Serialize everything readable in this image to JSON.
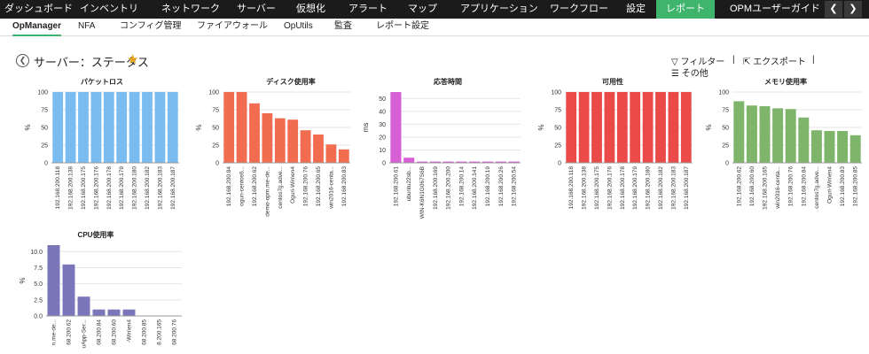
{
  "topnav": {
    "items": [
      "ダッシュボード",
      "インベントリ",
      "ネットワーク",
      "サーバー",
      "仮想化",
      "アラート",
      "マップ",
      "アプリケーション",
      "ワークフロー",
      "設定",
      "レポート",
      "OPMユーザーガイド"
    ],
    "active_index": 10,
    "accent_color": "#3fb46d"
  },
  "subnav": {
    "items": [
      "OpManager",
      "NFA",
      "コンフィグ管理",
      "ファイアウォール",
      "OpUtils",
      "監査",
      "レポート設定"
    ],
    "active_index": 0
  },
  "page": {
    "title": "サーバー：ステータス",
    "favorite_icon": "star-icon",
    "filter_label": "フィルター",
    "export_label": "エクスポート",
    "more_label": "その他"
  },
  "chart_data": [
    {
      "id": "packetloss",
      "type": "bar",
      "title": "パケットロス",
      "ylabel": "%",
      "ylim": [
        0,
        100
      ],
      "yticks": [
        0,
        25,
        50,
        75,
        100
      ],
      "color": "#7bbcf0",
      "categories": [
        "192.168.200.118",
        "192.168.200.138",
        "192.168.200.175",
        "192.168.200.176",
        "192.168.200.178",
        "192.168.200.179",
        "192.168.200.180",
        "192.168.200.182",
        "192.168.200.183",
        "192.168.200.187"
      ],
      "values": [
        100,
        100,
        100,
        100,
        100,
        100,
        100,
        100,
        100,
        100
      ]
    },
    {
      "id": "disk",
      "type": "bar",
      "title": "ディスク使用率",
      "ylabel": "%",
      "ylim": [
        0,
        100
      ],
      "yticks": [
        0,
        25,
        50,
        75,
        100
      ],
      "color": "#f26d4f",
      "categories": [
        "192.168.200.84",
        "ogun-centos6...",
        "192.168.200.62",
        "demo-opm.me-de...",
        "centos7g.adve...",
        "Oguri-Win\\en4",
        "192.168.200.76",
        "192.168.200.65",
        "win2016-centa...",
        "192.168.200.83"
      ],
      "values": [
        100,
        100,
        84,
        70,
        63,
        61,
        46,
        40,
        26,
        19
      ]
    },
    {
      "id": "response",
      "type": "bar",
      "title": "応答時間",
      "ylabel": "ms",
      "ylim": [
        0,
        55
      ],
      "yticks": [
        0,
        10,
        20,
        30,
        40,
        50
      ],
      "color": "#d65fd6",
      "categories": [
        "192.168.200.61",
        "ubuntu22sb...",
        "WIN-K6N1G067S6B",
        "192.168.200.169",
        "192.168.200.200",
        "192.168.200.14",
        "192.168.200.141",
        "192.168.200.19",
        "192.168.200.26",
        "192.168.200.54"
      ],
      "values": [
        55,
        4,
        1,
        1,
        1,
        1,
        1,
        1,
        1,
        1
      ]
    },
    {
      "id": "availability",
      "type": "bar",
      "title": "可用性",
      "ylabel": "%",
      "ylim": [
        0,
        100
      ],
      "yticks": [
        0,
        25,
        50,
        75,
        100
      ],
      "color": "#ea4a48",
      "categories": [
        "192.168.200.118",
        "192.168.200.138",
        "192.168.200.175",
        "192.168.200.176",
        "192.168.200.178",
        "192.168.200.179",
        "192.168.200.180",
        "192.168.200.182",
        "192.168.200.183",
        "192.168.200.187"
      ],
      "values": [
        100,
        100,
        100,
        100,
        100,
        100,
        100,
        100,
        100,
        100
      ]
    },
    {
      "id": "memory",
      "type": "bar",
      "title": "メモリ使用率",
      "ylabel": "%",
      "ylim": [
        0,
        100
      ],
      "yticks": [
        0,
        25,
        50,
        75,
        100
      ],
      "color": "#7fb56a",
      "categories": [
        "192.168.200.62",
        "192.168.200.60",
        "192.168.200.165",
        "win2016-centa...",
        "192.168.200.76",
        "192.168.200.84",
        "centos7g.adve...",
        "Oguri-Win\\en4",
        "192.168.200.83",
        "192.168.200.85"
      ],
      "values": [
        87,
        81,
        80,
        77,
        76,
        64,
        46,
        45,
        45,
        39
      ]
    },
    {
      "id": "cpu",
      "type": "bar",
      "title": "CPU使用率",
      "ylabel": "%",
      "ylim": [
        0,
        11
      ],
      "yticks": [
        0,
        2.5,
        5,
        7.5,
        10
      ],
      "ytick_labels": [
        "0.0",
        "2.5",
        "5.0",
        "7.5",
        "10.0"
      ],
      "color": "#7b76b9",
      "categories": [
        "n.me-de...",
        "68.200.62",
        "uApp-Ser...",
        "68.200.84",
        "68.200.60",
        "-Win\\en4",
        "68.200.85",
        "8.200.165",
        "68.200.76"
      ],
      "values": [
        11,
        8,
        3,
        1,
        1,
        1,
        0,
        0,
        0
      ]
    }
  ]
}
